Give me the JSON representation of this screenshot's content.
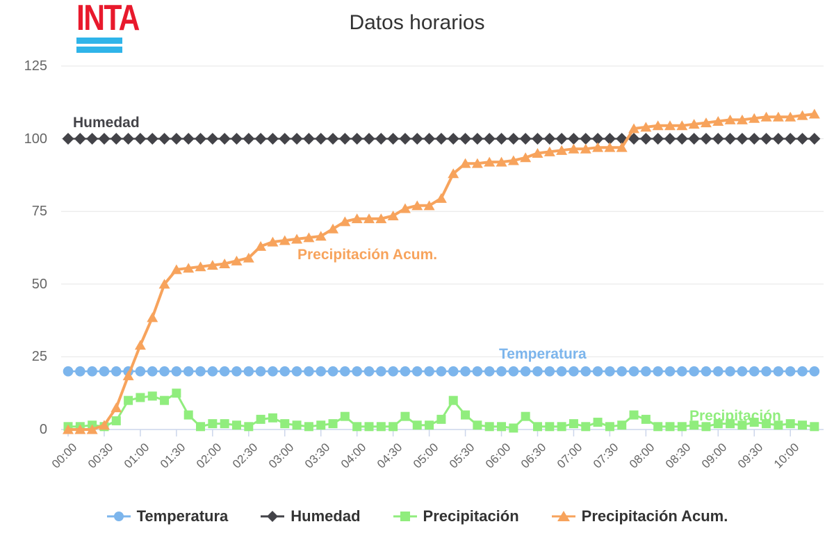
{
  "logo": {
    "text": "INTA",
    "red": "#e8192c",
    "cyan": "#2fb4e9"
  },
  "title": "Datos horarios",
  "axis": {
    "grid_color": "#e6e6e6",
    "axis_line_color": "#ccd6eb",
    "tick_label_color": "#666666"
  },
  "legend": {
    "position": "bottom"
  },
  "chart_data": {
    "type": "line",
    "title": "Datos horarios",
    "xlabel": "",
    "ylabel": "",
    "ylim": [
      0,
      125
    ],
    "yticks": [
      0,
      25,
      50,
      75,
      100,
      125
    ],
    "grid": true,
    "legend_position": "bottom",
    "x": [
      "00:00",
      "00:10",
      "00:20",
      "00:30",
      "00:40",
      "00:50",
      "01:00",
      "01:10",
      "01:20",
      "01:30",
      "01:40",
      "01:50",
      "02:00",
      "02:10",
      "02:20",
      "02:30",
      "02:40",
      "02:50",
      "03:00",
      "03:10",
      "03:20",
      "03:30",
      "03:40",
      "03:50",
      "04:00",
      "04:10",
      "04:20",
      "04:30",
      "04:40",
      "04:50",
      "05:00",
      "05:10",
      "05:20",
      "05:30",
      "05:40",
      "05:50",
      "06:00",
      "06:10",
      "06:20",
      "06:30",
      "06:40",
      "06:50",
      "07:00",
      "07:10",
      "07:20",
      "07:30",
      "07:40",
      "07:50",
      "08:00",
      "08:10",
      "08:20",
      "08:30",
      "08:40",
      "08:50",
      "09:00",
      "09:10",
      "09:20",
      "09:30",
      "09:40",
      "09:50",
      "10:00",
      "10:10",
      "10:20"
    ],
    "xtick_labels": [
      "00:00",
      "00:30",
      "01:00",
      "01:30",
      "02:00",
      "02:30",
      "03:00",
      "03:30",
      "04:00",
      "04:30",
      "05:00",
      "05:30",
      "06:00",
      "06:30",
      "07:00",
      "07:30",
      "08:00",
      "08:30",
      "09:00",
      "09:30",
      "10:00"
    ],
    "xtick_every": 3,
    "series": [
      {
        "name": "Temperatura",
        "marker": "circle",
        "color": "#7cb5ec",
        "values": [
          20,
          20,
          20,
          20,
          20,
          20,
          20,
          20,
          20,
          20,
          20,
          20,
          20,
          20,
          20,
          20,
          20,
          20,
          20,
          20,
          20,
          20,
          20,
          20,
          20,
          20,
          20,
          20,
          20,
          20,
          20,
          20,
          20,
          20,
          20,
          20,
          20,
          20,
          20,
          20,
          20,
          20,
          20,
          20,
          20,
          20,
          20,
          20,
          20,
          20,
          20,
          20,
          20,
          20,
          20,
          20,
          20,
          20,
          20,
          20,
          20,
          20,
          20
        ]
      },
      {
        "name": "Humedad",
        "marker": "diamond",
        "color": "#434348",
        "values": [
          100,
          100,
          100,
          100,
          100,
          100,
          100,
          100,
          100,
          100,
          100,
          100,
          100,
          100,
          100,
          100,
          100,
          100,
          100,
          100,
          100,
          100,
          100,
          100,
          100,
          100,
          100,
          100,
          100,
          100,
          100,
          100,
          100,
          100,
          100,
          100,
          100,
          100,
          100,
          100,
          100,
          100,
          100,
          100,
          100,
          100,
          100,
          100,
          100,
          100,
          100,
          100,
          100,
          100,
          100,
          100,
          100,
          100,
          100,
          100,
          100,
          100,
          100
        ]
      },
      {
        "name": "Precipitación",
        "marker": "square",
        "color": "#90ed7d",
        "values": [
          1,
          1,
          1.5,
          1,
          3,
          10,
          11,
          11.5,
          10,
          12.5,
          5,
          1,
          2,
          2,
          1.5,
          1,
          3.5,
          4,
          2,
          1.5,
          1,
          1.5,
          2,
          4.5,
          1,
          1,
          1,
          1,
          4.5,
          1.5,
          1.5,
          3.5,
          10,
          5,
          1.5,
          1,
          1,
          0.5,
          4.5,
          1,
          1,
          1,
          2,
          1,
          2.5,
          1,
          1.5,
          5,
          3.5,
          1,
          1,
          1,
          1.5,
          1,
          2,
          2,
          1.5,
          2.5,
          2,
          1.5,
          2,
          1.5,
          1
        ]
      },
      {
        "name": "Precipitación Acum.",
        "marker": "triangle",
        "color": "#f7a35c",
        "values": [
          0,
          0,
          0,
          1.5,
          7.5,
          18.5,
          29,
          38.5,
          50,
          55,
          55.5,
          56,
          56.5,
          57,
          58,
          59,
          63,
          64.5,
          65,
          65.5,
          66,
          66.5,
          69,
          71.5,
          72.5,
          72.5,
          72.5,
          73.5,
          76,
          77,
          77,
          79.5,
          88,
          91.5,
          91.5,
          92,
          92,
          92.5,
          93.5,
          95,
          95.5,
          96,
          96.5,
          96.5,
          97,
          97,
          97,
          103.5,
          104,
          104.5,
          104.5,
          104.5,
          105,
          105.5,
          106,
          106.5,
          106.5,
          107,
          107.5,
          107.5,
          107.5,
          108,
          108.5
        ]
      }
    ],
    "series_labels_on_chart": [
      "Humedad",
      "Precipitación Acum.",
      "Temperatura",
      "Precipitación"
    ]
  }
}
